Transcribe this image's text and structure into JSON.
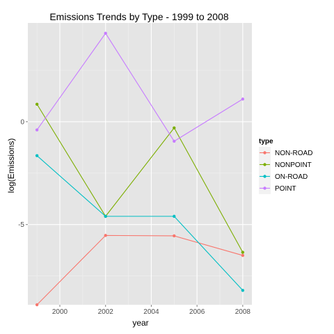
{
  "chart_data": {
    "type": "line",
    "title": "Emissions Trends by Type - 1999 to 2008",
    "xlabel": "year",
    "ylabel": "log(Emissions)",
    "x": [
      1999,
      2002,
      2005,
      2008
    ],
    "xticks": [
      2000,
      2002,
      2004,
      2006,
      2008
    ],
    "yticks": [
      0,
      -5
    ],
    "xlim": [
      1998.6,
      2008.4
    ],
    "ylim": [
      -8.9,
      4.8
    ],
    "grid": true,
    "legend": {
      "title": "type",
      "position": "right"
    },
    "series": [
      {
        "name": "NON-ROAD",
        "color": "#F8766D",
        "values": [
          -8.9,
          -5.53,
          -5.55,
          -6.5
        ]
      },
      {
        "name": "NONPOINT",
        "color": "#7CAE00",
        "values": [
          0.85,
          -4.6,
          -0.3,
          -6.35
        ]
      },
      {
        "name": "ON-ROAD",
        "color": "#00BFC4",
        "values": [
          -1.65,
          -4.6,
          -4.6,
          -8.2
        ]
      },
      {
        "name": "POINT",
        "color": "#C77CFF",
        "values": [
          -0.4,
          4.3,
          -0.95,
          1.1
        ]
      }
    ]
  }
}
